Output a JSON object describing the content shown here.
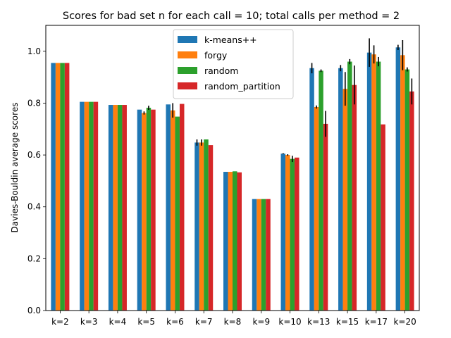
{
  "chart_data": {
    "type": "bar",
    "title": "Scores for bad set n for each call = 10; total calls per method = 2",
    "xlabel": "",
    "ylabel": "Davies-Bouldin average scores",
    "ylim": [
      0,
      1.1
    ],
    "yticks": [
      0.0,
      0.2,
      0.4,
      0.6,
      0.8,
      1.0
    ],
    "ytick_labels": [
      "0.0",
      "0.2",
      "0.4",
      "0.6",
      "0.8",
      "1.0"
    ],
    "grid": false,
    "legend": "top-center",
    "categories": [
      "k=2",
      "k=3",
      "k=4",
      "k=5",
      "k=6",
      "k=7",
      "k=8",
      "k=9",
      "k=10",
      "k=13",
      "k=15",
      "k=17",
      "k=20"
    ],
    "series": [
      {
        "name": "k-means++",
        "color": "#1f77b4",
        "values": [
          0.955,
          0.805,
          0.793,
          0.775,
          0.795,
          0.648,
          0.535,
          0.43,
          0.605,
          0.935,
          0.935,
          0.995,
          1.015
        ],
        "errors": [
          0,
          0,
          0,
          0,
          0,
          0.012,
          0,
          0,
          0.002,
          0.02,
          0.012,
          0.055,
          0.01
        ]
      },
      {
        "name": "forgy",
        "color": "#ff7f0e",
        "values": [
          0.955,
          0.805,
          0.793,
          0.762,
          0.772,
          0.648,
          0.535,
          0.43,
          0.6,
          0.785,
          0.855,
          0.988,
          0.985
        ],
        "errors": [
          0,
          0,
          0,
          0.006,
          0.028,
          0.012,
          0,
          0,
          0.003,
          0.006,
          0.065,
          0.035,
          0.058
        ]
      },
      {
        "name": "random",
        "color": "#2ca02c",
        "values": [
          0.955,
          0.805,
          0.793,
          0.782,
          0.748,
          0.66,
          0.537,
          0.43,
          0.585,
          0.925,
          0.96,
          0.96,
          0.93
        ],
        "errors": [
          0,
          0,
          0,
          0.008,
          0,
          0,
          0,
          0,
          0.012,
          0.005,
          0.01,
          0.018,
          0.008
        ]
      },
      {
        "name": "random_partition",
        "color": "#d62728",
        "values": [
          0.955,
          0.805,
          0.793,
          0.775,
          0.797,
          0.638,
          0.533,
          0.43,
          0.59,
          0.72,
          0.87,
          0.718,
          0.845
        ],
        "errors": [
          0,
          0,
          0,
          0,
          0,
          0,
          0,
          0,
          0,
          0.05,
          0.075,
          0,
          0.05
        ]
      }
    ]
  }
}
